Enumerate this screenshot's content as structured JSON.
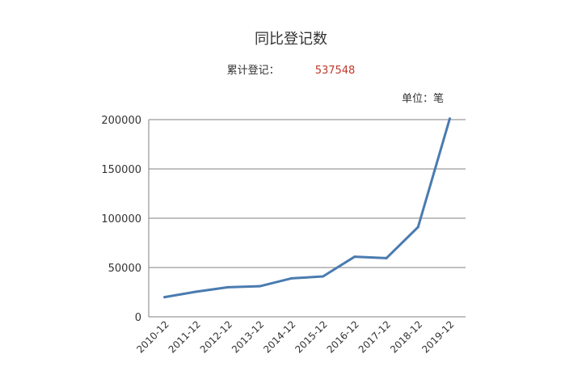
{
  "header": {
    "title": "同比登记数",
    "total_label": "累计登记：",
    "total_value": "537548",
    "unit_label": "单位：笔"
  },
  "colors": {
    "line": "#4a7bb0",
    "grid": "#808080",
    "total_value": "#c0392b"
  },
  "chart_data": {
    "type": "line",
    "title": "同比登记数",
    "xlabel": "",
    "ylabel": "",
    "categories": [
      "2010-12",
      "2011-12",
      "2012-12",
      "2013-12",
      "2014-12",
      "2015-12",
      "2016-12",
      "2017-12",
      "2018-12",
      "2019-12"
    ],
    "series": [
      {
        "values": [
          20000,
          25500,
          30000,
          31000,
          39000,
          41000,
          61000,
          59500,
          91000,
          201000
        ]
      }
    ],
    "ylim": [
      0,
      200000
    ],
    "yticks": [
      0,
      50000,
      100000,
      150000,
      200000
    ],
    "grid": true,
    "legend": "none"
  }
}
